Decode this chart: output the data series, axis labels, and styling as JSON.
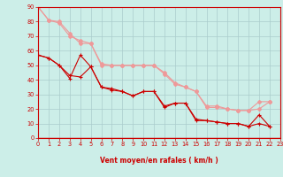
{
  "xlabel": "Vent moyen/en rafales ( km/h )",
  "xlim": [
    0,
    23
  ],
  "ylim": [
    0,
    90
  ],
  "xticks": [
    0,
    1,
    2,
    3,
    4,
    5,
    6,
    7,
    8,
    9,
    10,
    11,
    12,
    13,
    14,
    15,
    16,
    17,
    18,
    19,
    20,
    21,
    22,
    23
  ],
  "yticks": [
    0,
    10,
    20,
    30,
    40,
    50,
    60,
    70,
    80,
    90
  ],
  "bg_color": "#cceee8",
  "grid_color": "#aacccc",
  "line_color_dark": "#cc0000",
  "line_color_light": "#ee9999",
  "series_dark1": [
    57,
    55,
    50,
    41,
    57,
    49,
    35,
    34,
    32,
    29,
    32,
    32,
    22,
    24,
    24,
    13,
    12,
    11,
    10,
    10,
    8,
    16,
    8
  ],
  "series_dark2": [
    57,
    55,
    50,
    43,
    42,
    49,
    35,
    33,
    32,
    29,
    32,
    32,
    21,
    24,
    24,
    12,
    12,
    11,
    10,
    10,
    8,
    10,
    8
  ],
  "series_light1": [
    90,
    81,
    79,
    70,
    67,
    65,
    51,
    50,
    50,
    50,
    50,
    50,
    45,
    38,
    35,
    32,
    22,
    22,
    20,
    19,
    19,
    25,
    25
  ],
  "series_light2": [
    90,
    81,
    80,
    72,
    65,
    65,
    50,
    50,
    50,
    50,
    50,
    50,
    44,
    37,
    35,
    32,
    21,
    21,
    20,
    19,
    19,
    20,
    25
  ],
  "x": [
    0,
    1,
    2,
    3,
    4,
    5,
    6,
    7,
    8,
    9,
    10,
    11,
    12,
    13,
    14,
    15,
    16,
    17,
    18,
    19,
    20,
    21,
    22
  ]
}
